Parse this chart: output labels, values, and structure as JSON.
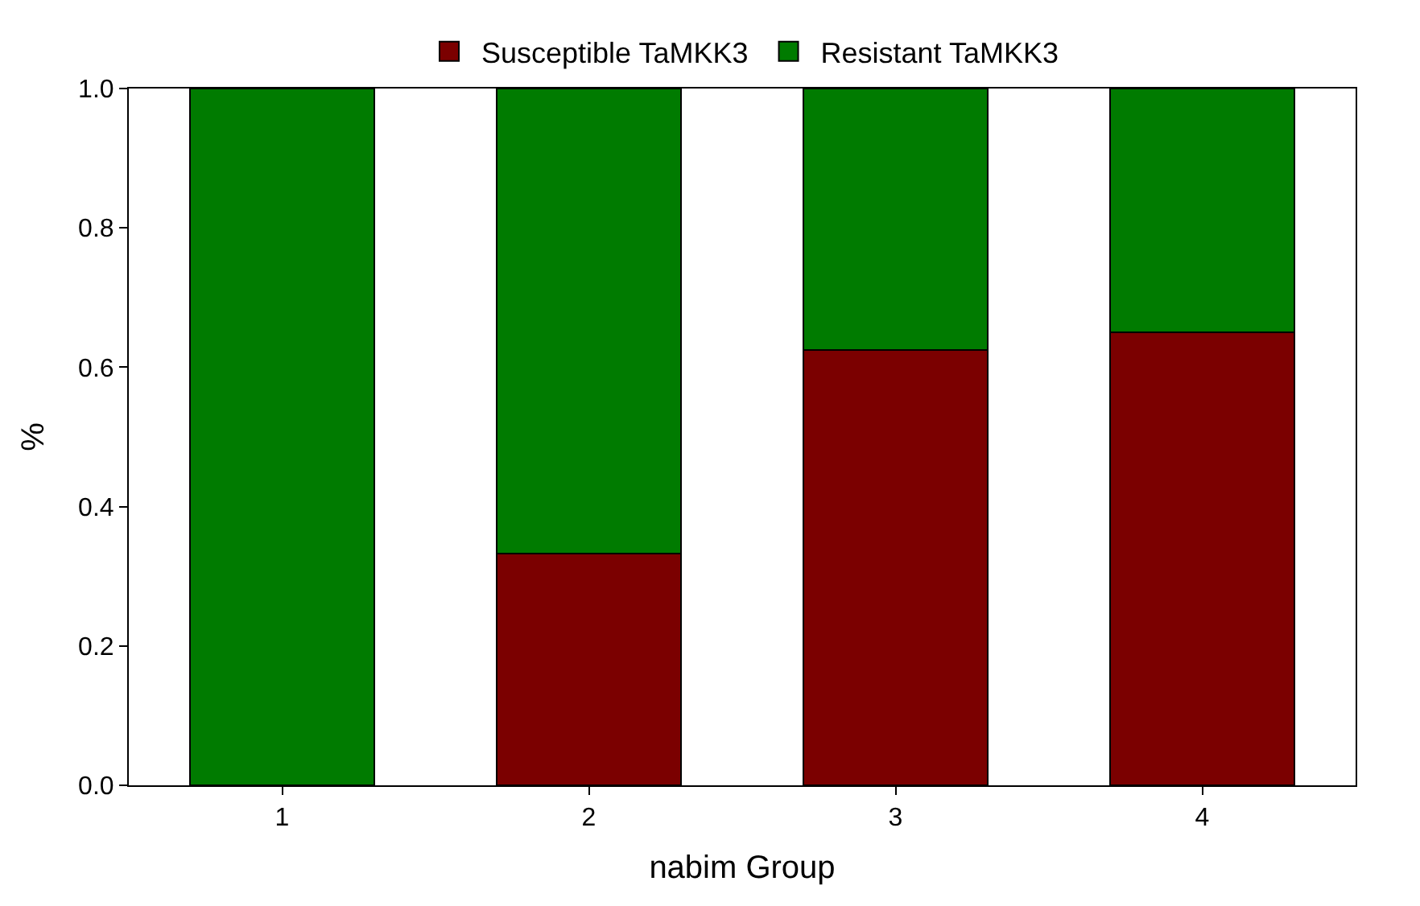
{
  "chart_data": {
    "type": "bar",
    "stacked": true,
    "xlabel": "nabim Group",
    "ylabel": "%",
    "categories": [
      "1",
      "2",
      "3",
      "4"
    ],
    "series": [
      {
        "name": "Susceptible TaMKK3",
        "color": "#7b0000",
        "values": [
          0,
          0.333,
          0.625,
          0.65
        ]
      },
      {
        "name": "Resistant TaMKK3",
        "color": "#007b00",
        "values": [
          1,
          0.667,
          0.375,
          0.35
        ]
      }
    ],
    "ylim": [
      0,
      1
    ],
    "yticks": [
      {
        "value": 0,
        "label": "0.0"
      },
      {
        "value": 0.2,
        "label": "0.2"
      },
      {
        "value": 0.4,
        "label": "0.4"
      },
      {
        "value": 0.6,
        "label": "0.6"
      },
      {
        "value": 0.8,
        "label": "0.8"
      },
      {
        "value": 1,
        "label": "1.0"
      }
    ],
    "legend": "top"
  }
}
